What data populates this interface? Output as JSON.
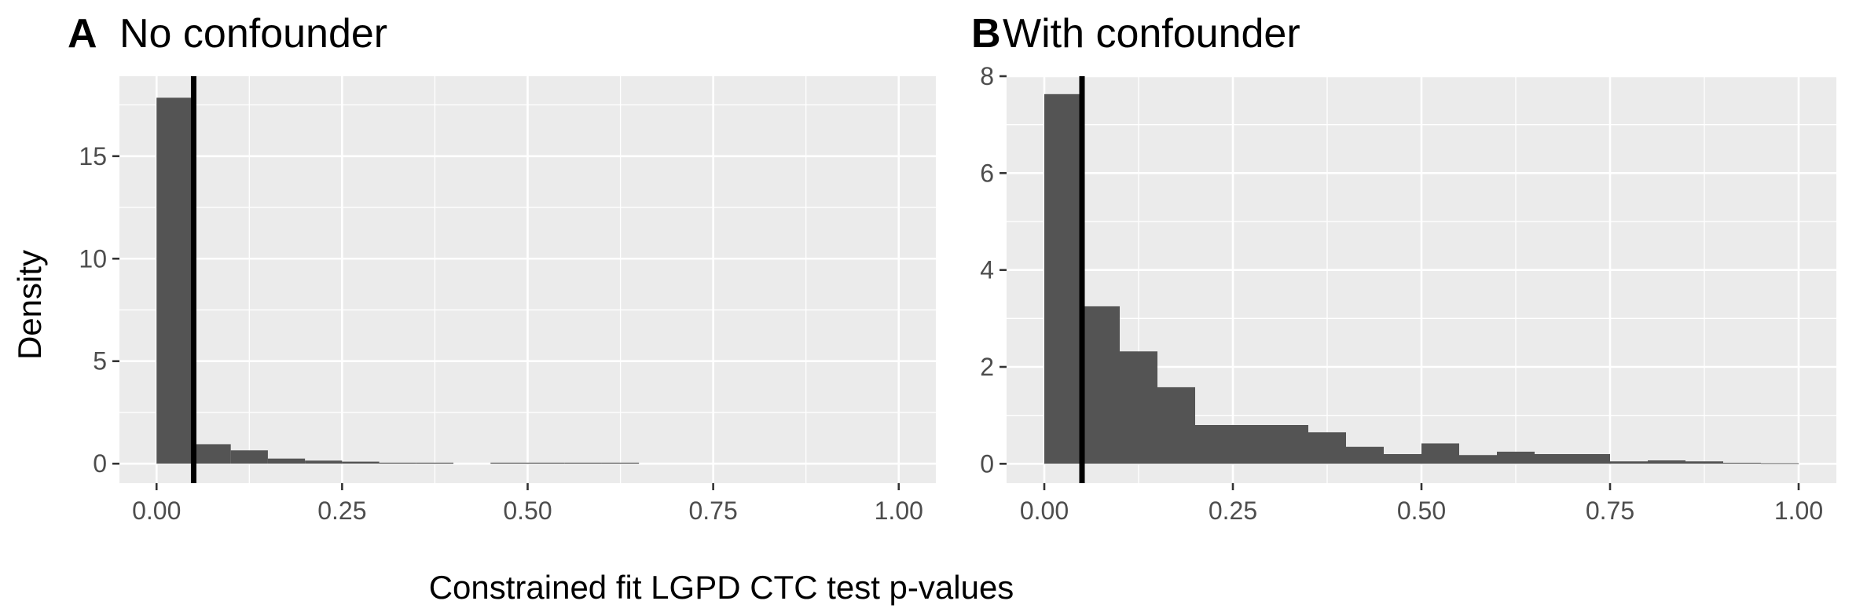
{
  "xlabel": "Constrained fit LGPD CTC test p-values",
  "ylabel": "Density",
  "chart_data": [
    {
      "tag": "A",
      "title": "No confounder",
      "type": "bar",
      "bin_width": 0.05,
      "bin_starts": [
        0,
        0.05,
        0.1,
        0.15,
        0.2,
        0.25,
        0.3,
        0.35,
        0.4,
        0.45,
        0.5,
        0.55,
        0.6,
        0.65,
        0.7,
        0.75,
        0.8,
        0.85,
        0.9,
        0.95
      ],
      "values": [
        17.85,
        0.95,
        0.65,
        0.25,
        0.15,
        0.1,
        0.05,
        0.05,
        0,
        0.05,
        0.05,
        0.05,
        0.05,
        0,
        0,
        0,
        0,
        0,
        0,
        0
      ],
      "vline": 0.05,
      "xlim": [
        -0.05,
        1.05
      ],
      "ylim": [
        -0.95,
        18.9
      ],
      "x_ticks": [
        0,
        0.25,
        0.5,
        0.75,
        1
      ],
      "x_tick_labels": [
        "0.00",
        "0.25",
        "0.50",
        "0.75",
        "1.00"
      ],
      "y_ticks": [
        0,
        5,
        10,
        15
      ],
      "y_tick_labels": [
        "0",
        "5",
        "10",
        "15"
      ]
    },
    {
      "tag": "B",
      "title": "With confounder",
      "type": "bar",
      "bin_width": 0.05,
      "bin_starts": [
        0,
        0.05,
        0.1,
        0.15,
        0.2,
        0.25,
        0.3,
        0.35,
        0.4,
        0.45,
        0.5,
        0.55,
        0.6,
        0.65,
        0.7,
        0.75,
        0.8,
        0.85,
        0.9,
        0.95
      ],
      "values": [
        7.63,
        3.25,
        2.32,
        1.58,
        0.8,
        0.8,
        0.8,
        0.65,
        0.35,
        0.2,
        0.42,
        0.18,
        0.25,
        0.2,
        0.2,
        0.05,
        0.07,
        0.05,
        0.02,
        0.01
      ],
      "vline": 0.05,
      "xlim": [
        -0.05,
        1.05
      ],
      "ylim": [
        -0.4,
        8.0
      ],
      "x_ticks": [
        0,
        0.25,
        0.5,
        0.75,
        1
      ],
      "x_tick_labels": [
        "0.00",
        "0.25",
        "0.50",
        "0.75",
        "1.00"
      ],
      "y_ticks": [
        0,
        2,
        4,
        6,
        8
      ],
      "y_tick_labels": [
        "0",
        "2",
        "4",
        "6",
        "8"
      ]
    }
  ]
}
